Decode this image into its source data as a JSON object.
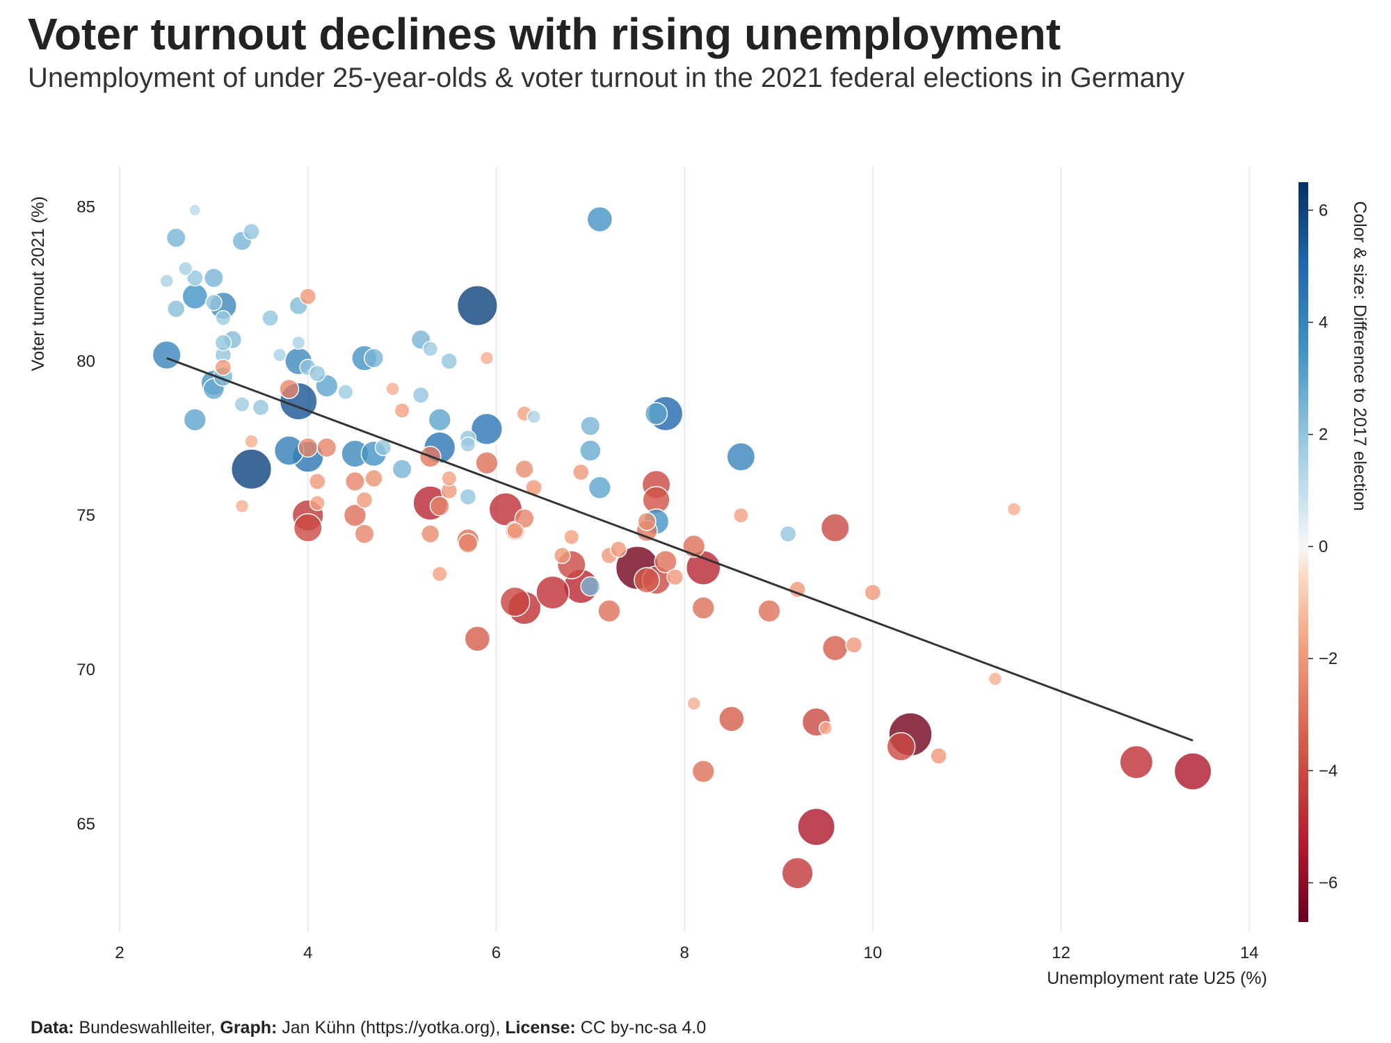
{
  "title": "Voter turnout declines with rising unemployment",
  "subtitle": "Unemployment of under 25-year-olds & voter turnout in the 2021 federal elections in Germany",
  "footer": {
    "data_label": "Data:",
    "data_value": " Bundeswahlleiter, ",
    "graph_label": "Graph:",
    "graph_value": " Jan Kühn (https://yotka.org), ",
    "license_label": "License:",
    "license_value": " CC by-nc-sa 4.0"
  },
  "chart_data": {
    "type": "scatter",
    "xlabel": "Unemployment rate U25 (%)",
    "ylabel": "Voter turnout 2021 (%)",
    "colorbar_label": "Color & size: Difference to 2017 election",
    "xlim": [
      2,
      14.5
    ],
    "ylim": [
      61.5,
      86.3
    ],
    "xticks": [
      2,
      4,
      6,
      8,
      10,
      12,
      14
    ],
    "yticks": [
      65,
      70,
      75,
      80,
      85
    ],
    "colorbar_range": [
      -6.7,
      6.5
    ],
    "colorbar_ticks": [
      6,
      4,
      2,
      0,
      -2,
      -4,
      -6
    ],
    "colorbar_tick_labels": [
      "6",
      "4",
      "2",
      "0",
      "−2",
      "−4",
      "−6"
    ],
    "grid": "vertical",
    "trend_line": {
      "x": [
        2.5,
        13.4
      ],
      "y": [
        80.1,
        67.7
      ]
    },
    "points": [
      {
        "x": 2.5,
        "y": 80.2,
        "d": 4.0
      },
      {
        "x": 2.6,
        "y": 84.0,
        "d": 2.5
      },
      {
        "x": 2.6,
        "y": 81.7,
        "d": 2.2
      },
      {
        "x": 2.5,
        "y": 82.6,
        "d": 1.5
      },
      {
        "x": 2.7,
        "y": 83.0,
        "d": 1.6
      },
      {
        "x": 2.8,
        "y": 82.1,
        "d": 3.5
      },
      {
        "x": 2.8,
        "y": 82.7,
        "d": 2.0
      },
      {
        "x": 2.8,
        "y": 78.1,
        "d": 3.0
      },
      {
        "x": 2.8,
        "y": 84.9,
        "d": 1.2
      },
      {
        "x": 3.0,
        "y": 82.7,
        "d": 2.5
      },
      {
        "x": 3.0,
        "y": 81.9,
        "d": 2.0
      },
      {
        "x": 3.1,
        "y": 81.8,
        "d": 3.8
      },
      {
        "x": 3.0,
        "y": 79.3,
        "d": 3.5
      },
      {
        "x": 3.0,
        "y": 79.1,
        "d": 2.8
      },
      {
        "x": 3.1,
        "y": 79.5,
        "d": 2.5
      },
      {
        "x": 3.1,
        "y": 80.2,
        "d": 2.0
      },
      {
        "x": 3.1,
        "y": 81.4,
        "d": 1.8
      },
      {
        "x": 3.2,
        "y": 80.7,
        "d": 2.3
      },
      {
        "x": 3.1,
        "y": 80.6,
        "d": 2.0
      },
      {
        "x": 3.3,
        "y": 83.9,
        "d": 2.5
      },
      {
        "x": 3.4,
        "y": 84.2,
        "d": 2.0
      },
      {
        "x": 3.4,
        "y": 76.5,
        "d": 6.0
      },
      {
        "x": 3.3,
        "y": 78.6,
        "d": 1.8
      },
      {
        "x": 3.1,
        "y": 79.8,
        "d": -2.0
      },
      {
        "x": 3.5,
        "y": 78.5,
        "d": 2.0
      },
      {
        "x": 3.6,
        "y": 81.4,
        "d": 2.0
      },
      {
        "x": 3.7,
        "y": 80.2,
        "d": 1.5
      },
      {
        "x": 3.4,
        "y": 77.4,
        "d": -1.5
      },
      {
        "x": 3.3,
        "y": 75.3,
        "d": -1.5
      },
      {
        "x": 3.8,
        "y": 77.1,
        "d": 4.2
      },
      {
        "x": 3.8,
        "y": 79.1,
        "d": -2.5
      },
      {
        "x": 3.9,
        "y": 78.7,
        "d": 5.5
      },
      {
        "x": 3.9,
        "y": 80.0,
        "d": 3.8
      },
      {
        "x": 3.9,
        "y": 81.8,
        "d": 2.3
      },
      {
        "x": 3.9,
        "y": 80.6,
        "d": 1.5
      },
      {
        "x": 4.0,
        "y": 82.1,
        "d": -2.0
      },
      {
        "x": 4.0,
        "y": 79.8,
        "d": 2.0
      },
      {
        "x": 4.0,
        "y": 76.9,
        "d": 4.5
      },
      {
        "x": 4.0,
        "y": 77.2,
        "d": -2.5
      },
      {
        "x": 4.0,
        "y": 75.0,
        "d": -4.5
      },
      {
        "x": 4.0,
        "y": 74.6,
        "d": -4.0
      },
      {
        "x": 4.1,
        "y": 79.6,
        "d": 2.0
      },
      {
        "x": 4.1,
        "y": 76.1,
        "d": -2.0
      },
      {
        "x": 4.1,
        "y": 75.4,
        "d": -1.8
      },
      {
        "x": 4.2,
        "y": 79.2,
        "d": 3.0
      },
      {
        "x": 4.2,
        "y": 77.2,
        "d": -2.5
      },
      {
        "x": 4.4,
        "y": 79.0,
        "d": 1.8
      },
      {
        "x": 4.5,
        "y": 77.0,
        "d": 3.8
      },
      {
        "x": 4.5,
        "y": 76.1,
        "d": -2.5
      },
      {
        "x": 4.5,
        "y": 75.0,
        "d": -3.0
      },
      {
        "x": 4.6,
        "y": 80.1,
        "d": 3.5
      },
      {
        "x": 4.7,
        "y": 80.1,
        "d": 2.5
      },
      {
        "x": 4.6,
        "y": 75.5,
        "d": -2.0
      },
      {
        "x": 4.6,
        "y": 74.4,
        "d": -2.5
      },
      {
        "x": 4.7,
        "y": 77.0,
        "d": 3.5
      },
      {
        "x": 4.7,
        "y": 76.2,
        "d": -2.2
      },
      {
        "x": 4.8,
        "y": 77.2,
        "d": 2.0
      },
      {
        "x": 5.0,
        "y": 76.5,
        "d": 2.5
      },
      {
        "x": 5.0,
        "y": 78.4,
        "d": -1.8
      },
      {
        "x": 4.9,
        "y": 79.1,
        "d": -1.5
      },
      {
        "x": 5.2,
        "y": 80.7,
        "d": 2.5
      },
      {
        "x": 5.2,
        "y": 78.9,
        "d": 2.0
      },
      {
        "x": 5.3,
        "y": 80.4,
        "d": 1.8
      },
      {
        "x": 5.3,
        "y": 76.9,
        "d": -2.8
      },
      {
        "x": 5.3,
        "y": 75.4,
        "d": -5.0
      },
      {
        "x": 5.3,
        "y": 74.4,
        "d": -2.3
      },
      {
        "x": 5.4,
        "y": 78.1,
        "d": 3.0
      },
      {
        "x": 5.4,
        "y": 77.2,
        "d": 4.5
      },
      {
        "x": 5.4,
        "y": 75.3,
        "d": -2.5
      },
      {
        "x": 5.5,
        "y": 75.8,
        "d": -2.0
      },
      {
        "x": 5.5,
        "y": 76.2,
        "d": -1.8
      },
      {
        "x": 5.5,
        "y": 80.0,
        "d": 2.0
      },
      {
        "x": 5.4,
        "y": 73.1,
        "d": -1.8
      },
      {
        "x": 5.7,
        "y": 77.5,
        "d": 2.0
      },
      {
        "x": 5.7,
        "y": 77.3,
        "d": 1.8
      },
      {
        "x": 5.7,
        "y": 75.6,
        "d": 2.0
      },
      {
        "x": 5.7,
        "y": 74.2,
        "d": -3.0
      },
      {
        "x": 5.7,
        "y": 74.1,
        "d": -2.5
      },
      {
        "x": 5.8,
        "y": 81.8,
        "d": 6.0
      },
      {
        "x": 5.9,
        "y": 77.8,
        "d": 4.5
      },
      {
        "x": 5.9,
        "y": 76.7,
        "d": -3.0
      },
      {
        "x": 5.8,
        "y": 71.0,
        "d": -3.5
      },
      {
        "x": 5.9,
        "y": 80.1,
        "d": -1.5
      },
      {
        "x": 6.1,
        "y": 75.2,
        "d": -4.8
      },
      {
        "x": 6.2,
        "y": 74.5,
        "d": -2.5
      },
      {
        "x": 6.2,
        "y": 74.5,
        "d": -2.0
      },
      {
        "x": 6.3,
        "y": 76.5,
        "d": -2.3
      },
      {
        "x": 6.3,
        "y": 78.3,
        "d": -1.8
      },
      {
        "x": 6.3,
        "y": 74.9,
        "d": -2.5
      },
      {
        "x": 6.4,
        "y": 75.9,
        "d": -2.0
      },
      {
        "x": 6.2,
        "y": 72.2,
        "d": -4.2
      },
      {
        "x": 6.3,
        "y": 72.0,
        "d": -4.8
      },
      {
        "x": 6.4,
        "y": 78.2,
        "d": 1.5
      },
      {
        "x": 6.6,
        "y": 72.5,
        "d": -4.8
      },
      {
        "x": 6.7,
        "y": 73.7,
        "d": -2.0
      },
      {
        "x": 6.8,
        "y": 73.4,
        "d": -4.0
      },
      {
        "x": 6.8,
        "y": 74.3,
        "d": -1.8
      },
      {
        "x": 6.9,
        "y": 72.7,
        "d": -5.0
      },
      {
        "x": 6.9,
        "y": 76.4,
        "d": -2.0
      },
      {
        "x": 7.0,
        "y": 72.7,
        "d": 2.5
      },
      {
        "x": 7.0,
        "y": 77.9,
        "d": 2.5
      },
      {
        "x": 7.0,
        "y": 77.1,
        "d": 2.8
      },
      {
        "x": 7.1,
        "y": 84.6,
        "d": 3.5
      },
      {
        "x": 7.1,
        "y": 75.9,
        "d": 3.0
      },
      {
        "x": 7.2,
        "y": 73.7,
        "d": -2.0
      },
      {
        "x": 7.3,
        "y": 73.9,
        "d": -2.0
      },
      {
        "x": 7.2,
        "y": 71.9,
        "d": -3.0
      },
      {
        "x": 7.5,
        "y": 73.3,
        "d": -6.5
      },
      {
        "x": 7.6,
        "y": 74.5,
        "d": -2.8
      },
      {
        "x": 7.6,
        "y": 74.8,
        "d": -2.3
      },
      {
        "x": 7.6,
        "y": 72.9,
        "d": -3.5
      },
      {
        "x": 7.7,
        "y": 76.0,
        "d": -4.0
      },
      {
        "x": 7.7,
        "y": 75.5,
        "d": -3.8
      },
      {
        "x": 7.7,
        "y": 74.8,
        "d": 3.5
      },
      {
        "x": 7.7,
        "y": 72.9,
        "d": -4.0
      },
      {
        "x": 7.7,
        "y": 78.3,
        "d": 3.0
      },
      {
        "x": 7.8,
        "y": 78.3,
        "d": 5.0
      },
      {
        "x": 7.8,
        "y": 73.5,
        "d": -3.0
      },
      {
        "x": 7.9,
        "y": 73.0,
        "d": -2.0
      },
      {
        "x": 8.1,
        "y": 74.0,
        "d": -3.0
      },
      {
        "x": 8.2,
        "y": 73.3,
        "d": -5.0
      },
      {
        "x": 8.2,
        "y": 72.0,
        "d": -3.0
      },
      {
        "x": 8.2,
        "y": 66.7,
        "d": -3.0
      },
      {
        "x": 8.1,
        "y": 68.9,
        "d": -1.5
      },
      {
        "x": 8.5,
        "y": 68.4,
        "d": -3.5
      },
      {
        "x": 8.6,
        "y": 76.9,
        "d": 4.0
      },
      {
        "x": 8.6,
        "y": 75.0,
        "d": -1.8
      },
      {
        "x": 8.9,
        "y": 71.9,
        "d": -3.0
      },
      {
        "x": 9.1,
        "y": 74.4,
        "d": 2.0
      },
      {
        "x": 9.2,
        "y": 72.6,
        "d": -2.0
      },
      {
        "x": 9.2,
        "y": 63.4,
        "d": -4.5
      },
      {
        "x": 9.4,
        "y": 64.9,
        "d": -5.5
      },
      {
        "x": 9.4,
        "y": 68.3,
        "d": -4.0
      },
      {
        "x": 9.5,
        "y": 68.1,
        "d": -1.5
      },
      {
        "x": 9.6,
        "y": 74.6,
        "d": -4.0
      },
      {
        "x": 9.6,
        "y": 70.7,
        "d": -3.5
      },
      {
        "x": 9.8,
        "y": 70.8,
        "d": -2.0
      },
      {
        "x": 10.0,
        "y": 72.5,
        "d": -2.0
      },
      {
        "x": 10.3,
        "y": 67.5,
        "d": -4.0
      },
      {
        "x": 10.4,
        "y": 67.9,
        "d": -6.5
      },
      {
        "x": 10.7,
        "y": 67.2,
        "d": -2.0
      },
      {
        "x": 11.3,
        "y": 69.7,
        "d": -1.5
      },
      {
        "x": 11.5,
        "y": 75.2,
        "d": -1.5
      },
      {
        "x": 12.8,
        "y": 67.0,
        "d": -4.8
      },
      {
        "x": 13.4,
        "y": 66.7,
        "d": -5.5
      }
    ]
  }
}
